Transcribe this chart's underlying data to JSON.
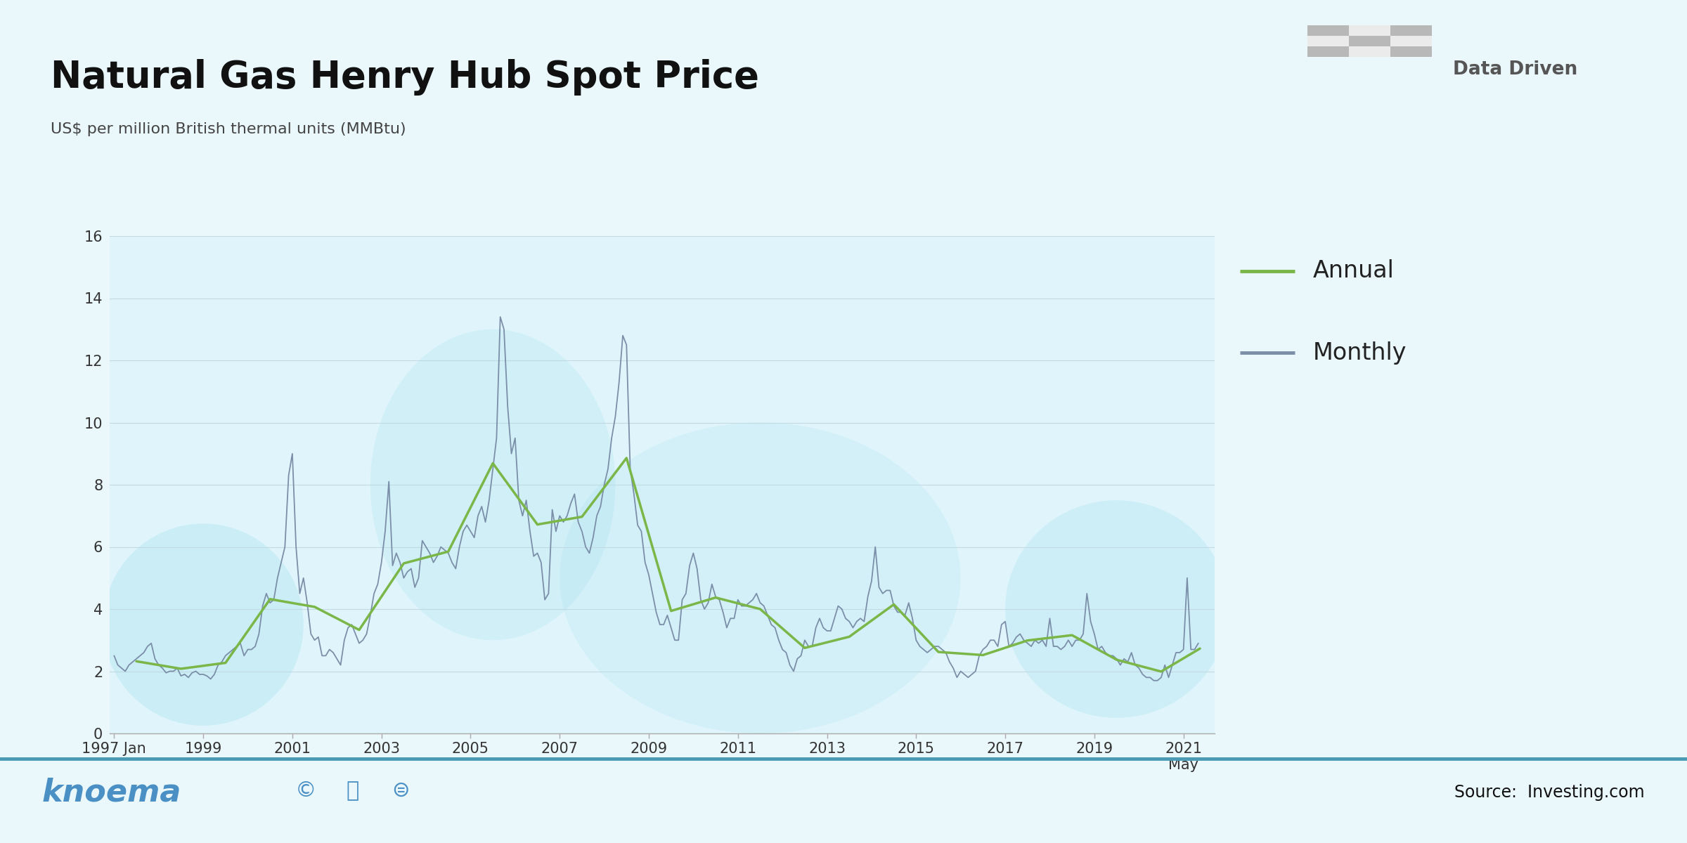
{
  "title": "Natural Gas Henry Hub Spot Price",
  "subtitle": "US$ per million British thermal units (MMBtu)",
  "watermark": "Data Driven",
  "source": "Source:  Investing.com",
  "knoema_text": "knoema",
  "ylim": [
    0,
    16
  ],
  "yticks": [
    0,
    2,
    4,
    6,
    8,
    10,
    12,
    14,
    16
  ],
  "annual_color": "#7ab648",
  "monthly_color": "#7b8fa8",
  "bg_color": "#eaf8fc",
  "plot_bg": "#e0f5fb",
  "title_color": "#111111",
  "subtitle_color": "#444444",
  "footer_bg": "#ffffff",
  "knoema_color": "#4a90c4",
  "separator_color": "#4a9ab4",
  "legend_annual": "Annual",
  "legend_monthly": "Monthly",
  "annual_data_years": [
    1997,
    1998,
    1999,
    2000,
    2001,
    2002,
    2003,
    2004,
    2005,
    2006,
    2007,
    2008,
    2009,
    2010,
    2011,
    2012,
    2013,
    2014,
    2015,
    2016,
    2017,
    2018,
    2019,
    2020,
    2021
  ],
  "annual_data_values": [
    2.32,
    2.08,
    2.27,
    4.32,
    4.07,
    3.33,
    5.47,
    5.85,
    8.69,
    6.72,
    6.97,
    8.86,
    3.94,
    4.37,
    4.0,
    2.75,
    3.11,
    4.15,
    2.62,
    2.52,
    2.99,
    3.16,
    2.37,
    1.99,
    2.73
  ],
  "xtick_labels": [
    "1997 Jan",
    "1999",
    "2001",
    "2003",
    "2005",
    "2007",
    "2009",
    "2011",
    "2013",
    "2015",
    "2017",
    "2019",
    "2021"
  ],
  "xtick_positions": [
    1997.0,
    1999.0,
    2001.0,
    2003.0,
    2005.0,
    2007.0,
    2009.0,
    2011.0,
    2013.0,
    2015.0,
    2017.0,
    2019.0,
    2021.0
  ],
  "grid_color": "#c0d8e0",
  "axis_color": "#aaaaaa",
  "xlim": [
    1996.9,
    2021.7
  ],
  "monthly_linewidth": 1.3,
  "annual_linewidth": 2.5,
  "blob_color": "#a8e0f0",
  "blob_alpha": 0.5
}
